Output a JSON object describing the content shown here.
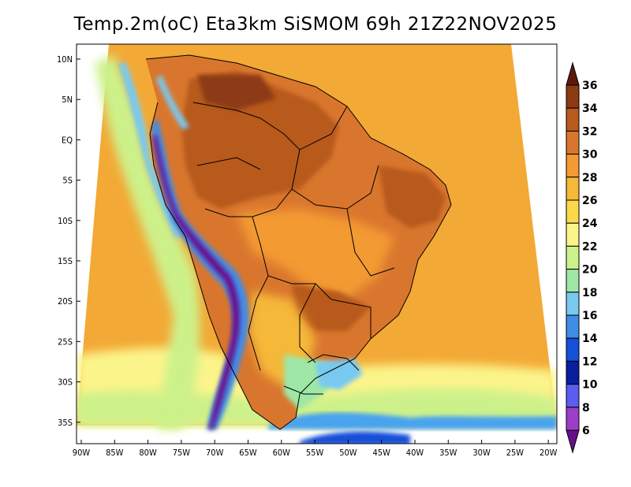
{
  "title": "Temp.2m(oC) Eta3km SiSMOM 69h 21Z22NOV2025",
  "lat_labels": [
    "10N",
    "5N",
    "EQ",
    "5S",
    "10S",
    "15S",
    "20S",
    "25S",
    "30S",
    "35S"
  ],
  "lon_labels": [
    "90W",
    "85W",
    "80W",
    "75W",
    "70W",
    "65W",
    "60W",
    "55W",
    "50W",
    "45W",
    "40W",
    "35W",
    "30W",
    "25W",
    "20W"
  ],
  "colorbar": {
    "levels": [
      "36",
      "34",
      "32",
      "30",
      "28",
      "26",
      "24",
      "22",
      "20",
      "18",
      "16",
      "14",
      "12",
      "10",
      "8",
      "6"
    ],
    "colors": [
      "#5c1a0c",
      "#8c3a12",
      "#b85a1e",
      "#d9762e",
      "#f39a32",
      "#f5b837",
      "#fcd94a",
      "#fbf48a",
      "#cdf18a",
      "#9ee7a6",
      "#78c9f0",
      "#3f8de6",
      "#1450d8",
      "#0a1ea0",
      "#5b5cf0",
      "#9b3ec8",
      "#6a0f8c"
    ]
  }
}
